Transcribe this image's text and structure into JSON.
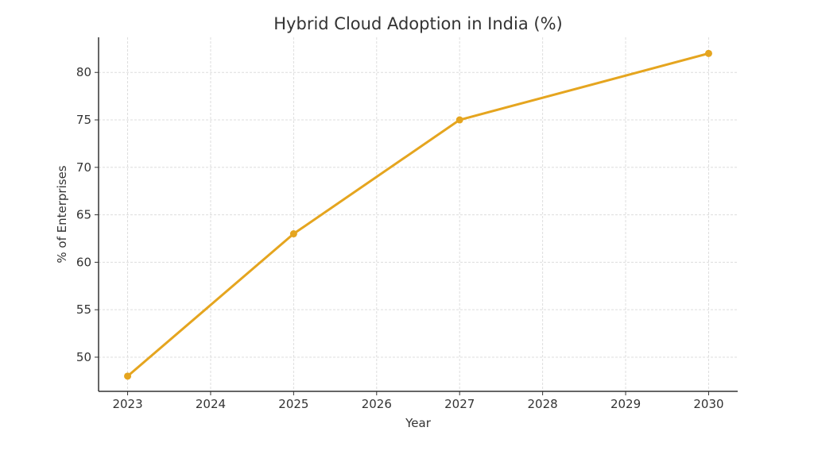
{
  "chart_data": {
    "type": "line",
    "title": "Hybrid Cloud Adoption in India (%)",
    "xlabel": "Year",
    "ylabel": "% of Enterprises",
    "x": [
      2023,
      2025,
      2027,
      2030
    ],
    "values": [
      48,
      63,
      75,
      82
    ],
    "xticks": [
      "2023",
      "2024",
      "2025",
      "2026",
      "2027",
      "2028",
      "2029",
      "2030"
    ],
    "yticks": [
      "50",
      "55",
      "60",
      "65",
      "70",
      "75",
      "80"
    ],
    "xlim": [
      2022.65,
      2030.35
    ],
    "ylim": [
      46.4,
      83.7
    ],
    "grid": true,
    "marker": "circle",
    "line_color": "#E5A51F"
  }
}
